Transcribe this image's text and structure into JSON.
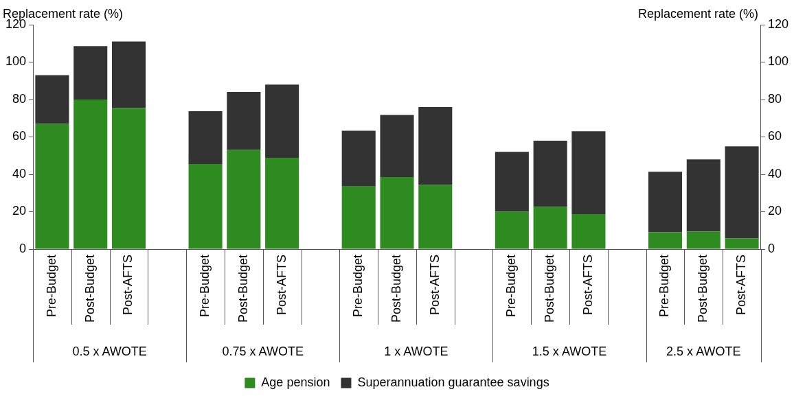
{
  "chart_data": {
    "type": "bar",
    "stacked": true,
    "ylabel": "Replacement rate (%)",
    "y2label": "Replacement rate (%)",
    "categories": [
      "Pre-Budget",
      "Post-Budget",
      "Post-AFTS",
      null,
      "Pre-Budget",
      "Post-Budget",
      "Post-AFTS",
      null,
      "Pre-Budget",
      "Post-Budget",
      "Post-AFTS",
      null,
      "Pre-Budget",
      "Post-Budget",
      "Post-AFTS",
      null,
      "Pre-Budget",
      "Post-Budget",
      "Post-AFTS"
    ],
    "series": [
      {
        "name": "Age pension",
        "color": "#2e8b20",
        "values": [
          67,
          80,
          75.5,
          null,
          45.5,
          53,
          48.8,
          null,
          33.5,
          38.5,
          34.3,
          null,
          20,
          22.7,
          18.7,
          null,
          9,
          9.4,
          5.7
        ]
      },
      {
        "name": "Superannuation guarantee savings",
        "color": "#333333",
        "values": [
          26,
          28.5,
          35.5,
          null,
          28.3,
          31,
          39.2,
          null,
          29.8,
          33.2,
          41.7,
          null,
          32,
          35.3,
          44.3,
          null,
          32.4,
          38.6,
          49.3
        ]
      }
    ],
    "ylim": [
      0,
      120
    ],
    "yticks": [
      0,
      20,
      40,
      60,
      80,
      100,
      120
    ],
    "y2lim": [
      0,
      120
    ],
    "y2ticks": [
      0,
      20,
      40,
      60,
      80,
      100,
      120
    ],
    "annotations": [
      "0.5 x AWOTE",
      "0.75 x AWOTE",
      "1 x AWOTE",
      "1.5 x AWOTE",
      "2.5 x AWOTE"
    ],
    "legend": "bottom",
    "grid": false
  }
}
